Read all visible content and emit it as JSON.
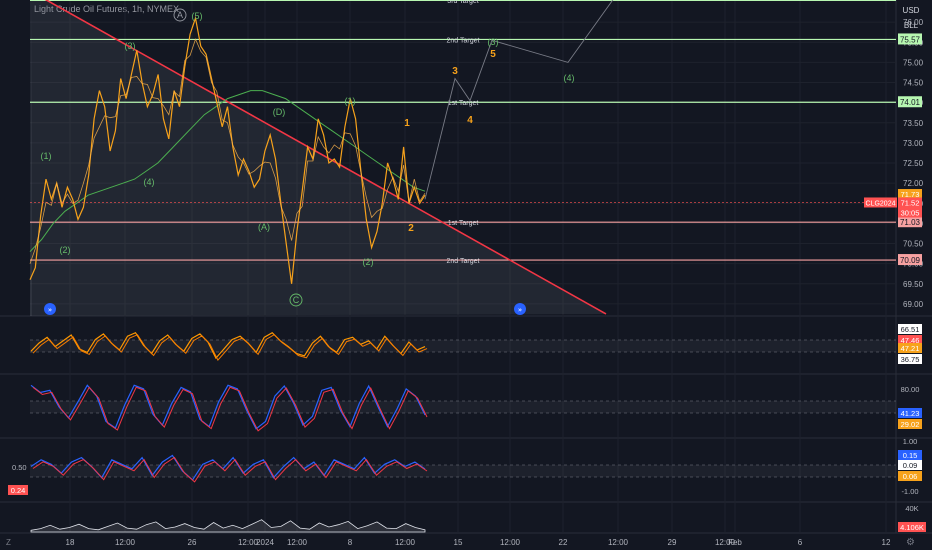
{
  "header": {
    "title": "Light Crude Oil Futures, 1h, NYMEX",
    "currency": "USD",
    "unit": "BLL"
  },
  "colors": {
    "background": "#131722",
    "grid": "#1e222d",
    "trendline": "#f23645",
    "target_up": "#b7f7b1",
    "target_down": "#f7a1a1",
    "price": "#f7a21b",
    "ma": "#4caf50",
    "wave_green": "#66bb6a",
    "wave_orange": "#f7a21b",
    "osc_blue": "#2962ff",
    "osc_red": "#f23645"
  },
  "chart_data": [
    {
      "type": "line",
      "symbol": "CLG2024",
      "x_ticks": [
        "18",
        "12:00",
        "26",
        "12:00",
        "2024",
        "12:00",
        "8",
        "12:00",
        "15",
        "12:00",
        "22",
        "12:00",
        "29",
        "12:00",
        "Feb",
        "6",
        "12"
      ],
      "ylim": [
        68.7,
        76.55
      ],
      "y_ticks": [
        "76.00",
        "75.50",
        "75.00",
        "74.50",
        "74.00",
        "73.50",
        "73.00",
        "72.50",
        "72.00",
        "71.50",
        "71.00",
        "70.50",
        "70.00",
        "69.50",
        "69.00"
      ],
      "series_values": [
        69.6,
        69.9,
        71.2,
        72.1,
        71.6,
        72.0,
        71.4,
        71.9,
        71.6,
        71.1,
        71.4,
        72.2,
        73.6,
        74.3,
        73.9,
        72.8,
        73.3,
        74.6,
        74.1,
        74.7,
        75.3,
        74.5,
        73.9,
        74.2,
        74.7,
        73.6,
        73.1,
        74.3,
        73.9,
        74.9,
        75.7,
        76.1,
        75.4,
        75.2,
        74.6,
        74.0,
        73.4,
        73.9,
        72.9,
        72.2,
        72.6,
        72.3,
        71.9,
        72.1,
        72.8,
        73.2,
        72.6,
        71.5,
        70.5,
        69.5,
        70.8,
        71.8,
        72.9,
        72.6,
        73.6,
        73.2,
        72.5,
        72.6,
        72.4,
        73.4,
        74.1,
        73.6,
        72.3,
        71.1,
        70.4,
        70.8,
        71.5,
        72.5,
        72.1,
        71.6,
        72.9,
        71.5,
        71.9,
        71.5,
        71.7
      ],
      "moving_average": [
        70.3,
        70.6,
        71.0,
        71.3,
        71.5,
        71.7,
        71.8,
        71.9,
        72.0,
        72.1,
        72.3,
        72.5,
        72.8,
        73.1,
        73.4,
        73.7,
        73.9,
        74.1,
        74.2,
        74.3,
        74.3,
        74.2,
        74.1,
        73.9,
        73.7,
        73.5,
        73.3,
        73.1,
        72.9,
        72.7,
        72.5,
        72.3,
        72.1,
        71.9,
        71.8
      ],
      "projection": [
        [
          71.73,
          72.3
        ],
        [
          73.7,
          74.6
        ],
        [
          73.9,
          74.2
        ],
        [
          74.8,
          75.5
        ],
        [
          74.4,
          75.0
        ]
      ],
      "trendline": {
        "from": 76.75,
        "to": 68.75
      },
      "levels": [
        {
          "label": "2nd Target",
          "price": 75.57,
          "kind": "up"
        },
        {
          "label": "1st Target",
          "price": 74.01,
          "kind": "up"
        },
        {
          "label": "1st Target",
          "price": 71.03,
          "kind": "down"
        },
        {
          "label": "2nd Target",
          "price": 70.09,
          "kind": "down"
        }
      ],
      "top_level_label": "3rd Target",
      "last_price": "71.52",
      "price_badges": [
        {
          "text": "71.73",
          "color": "#f7a21b"
        },
        {
          "text": "71.71",
          "color": "#f7a21b"
        },
        {
          "text": "71.52",
          "color": "#ff5252"
        },
        {
          "text": "30:05",
          "color": "#ff5252"
        }
      ],
      "symbol_badge": "CLG2024",
      "wave_labels": [
        {
          "text": "A",
          "color": "#9598a1",
          "circle": true
        },
        {
          "text": "(5)",
          "color": "#66bb6a"
        },
        {
          "text": "(3)",
          "color": "#66bb6a"
        },
        {
          "text": "(1)",
          "color": "#66bb6a"
        },
        {
          "text": "(4)",
          "color": "#66bb6a"
        },
        {
          "text": "(2)",
          "color": "#66bb6a"
        },
        {
          "text": "(D)",
          "color": "#66bb6a"
        },
        {
          "text": "(1)",
          "color": "#66bb6a"
        },
        {
          "text": "(A)",
          "color": "#66bb6a"
        },
        {
          "text": "C",
          "color": "#66bb6a",
          "circle": true
        },
        {
          "text": "(2)",
          "color": "#66bb6a"
        },
        {
          "text": "(3)",
          "color": "#66bb6a"
        },
        {
          "text": "(4)",
          "color": "#66bb6a"
        },
        {
          "text": "3",
          "color": "#f7a21b"
        },
        {
          "text": "5",
          "color": "#f7a21b"
        },
        {
          "text": "4",
          "color": "#f7a21b"
        },
        {
          "text": "1",
          "color": "#f7a21b"
        },
        {
          "text": "2",
          "color": "#f7a21b"
        }
      ]
    },
    {
      "type": "line",
      "ylim": [
        30,
        75
      ],
      "values": [
        48,
        55,
        60,
        52,
        57,
        62,
        50,
        47,
        58,
        63,
        55,
        49,
        61,
        64,
        53,
        46,
        57,
        62,
        54,
        48,
        59,
        63,
        56,
        42,
        50,
        58,
        61,
        55,
        47,
        60,
        64,
        57,
        52,
        46,
        44,
        55,
        61,
        52,
        47,
        58,
        60,
        54,
        57,
        50,
        61,
        53,
        46,
        56,
        49,
        52
      ],
      "tick_labels": [
        "66.51",
        "47.46",
        "47.21",
        "36.75"
      ]
    },
    {
      "type": "line",
      "ylim": [
        15,
        95
      ],
      "values": [
        85,
        75,
        78,
        55,
        40,
        62,
        85,
        70,
        35,
        26,
        58,
        85,
        80,
        45,
        30,
        60,
        82,
        76,
        38,
        28,
        62,
        85,
        80,
        50,
        25,
        35,
        70,
        84,
        60,
        30,
        42,
        78,
        82,
        50,
        28,
        60,
        84,
        55,
        28,
        52,
        80,
        70,
        44
      ],
      "tick_labels": [
        "80.00",
        "41.23",
        "29.02"
      ]
    },
    {
      "type": "line",
      "ylim": [
        -1.3,
        1.3
      ],
      "values": [
        0.2,
        0.5,
        0.3,
        -0.1,
        0.4,
        0.6,
        0.2,
        -0.3,
        0.5,
        0.3,
        0.1,
        0.6,
        -0.2,
        0.4,
        0.7,
        0.0,
        -0.4,
        0.3,
        0.5,
        0.1,
        0.6,
        -0.1,
        0.3,
        0.5,
        -0.3,
        0.2,
        0.6,
        0.1,
        0.4,
        -0.2,
        0.5,
        0.3,
        0.1,
        0.6,
        -0.1,
        0.3,
        0.5,
        0.2,
        0.4,
        0.09
      ],
      "tick_labels": [
        "1.00",
        "0.15",
        "0.09",
        "0.06",
        "-1.00"
      ],
      "left_labels": [
        "0.50",
        "0.24"
      ]
    },
    {
      "type": "area",
      "ylim": [
        0,
        50
      ],
      "values": [
        3,
        6,
        12,
        5,
        8,
        14,
        6,
        4,
        10,
        16,
        7,
        5,
        13,
        18,
        6,
        9,
        15,
        8,
        5,
        17,
        7,
        12,
        6,
        14,
        22,
        8,
        10,
        20,
        7,
        5,
        16,
        9,
        13,
        19,
        6,
        11,
        18,
        7,
        6,
        15,
        8,
        4
      ],
      "tick_labels": [
        "40K",
        "4.106K"
      ]
    }
  ]
}
